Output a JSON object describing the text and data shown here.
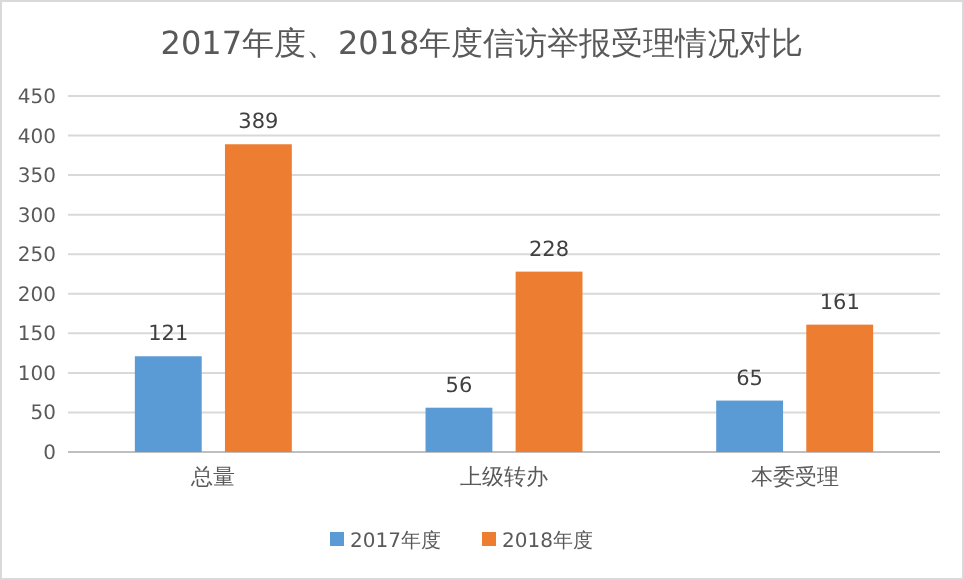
{
  "chart_data": {
    "type": "bar",
    "title": "2017年度、2018年度信访举报受理情况对比",
    "categories": [
      "总量",
      "上级转办",
      "本委受理"
    ],
    "series": [
      {
        "name": "2017年度",
        "color": "#5b9bd5",
        "values": [
          121,
          56,
          65
        ]
      },
      {
        "name": "2018年度",
        "color": "#ed7d31",
        "values": [
          389,
          228,
          161
        ]
      }
    ],
    "ylim": [
      0,
      450
    ],
    "yticks": [
      0,
      50,
      100,
      150,
      200,
      250,
      300,
      350,
      400,
      450
    ],
    "grid": "y",
    "legend": "bottom",
    "data_labels": true
  }
}
